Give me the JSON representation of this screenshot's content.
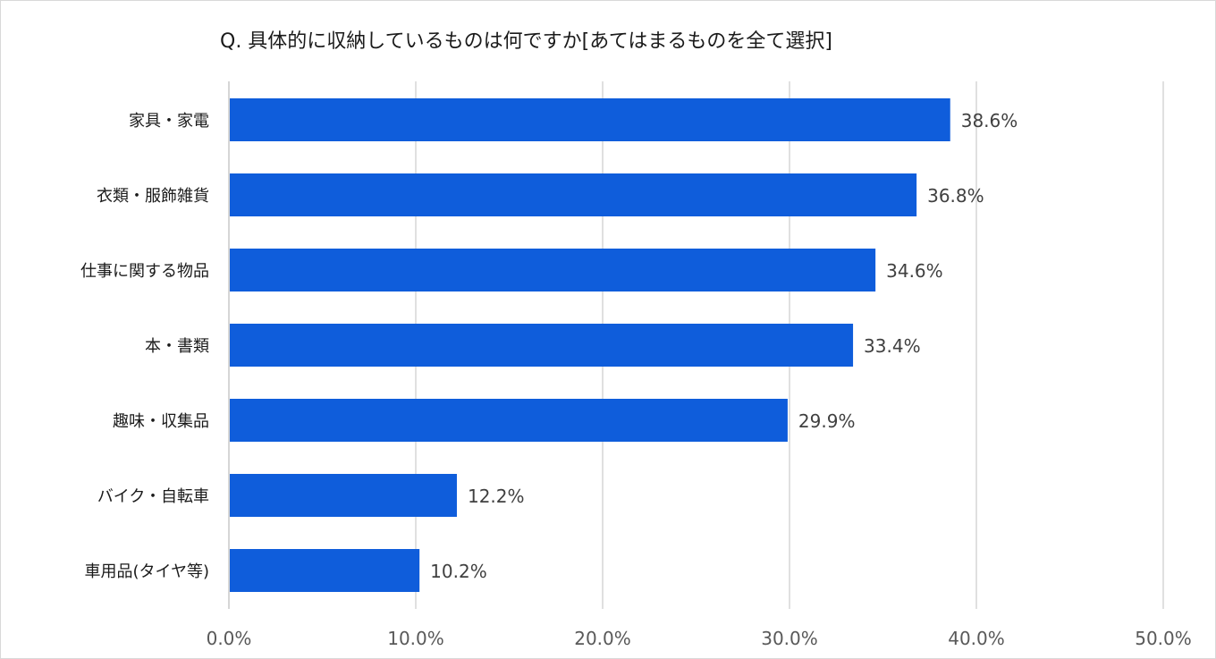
{
  "chart_data": {
    "type": "bar",
    "orientation": "horizontal",
    "title": "Q. 具体的に収納しているものは何ですか[あてはまるものを全て選択]",
    "categories": [
      "家具・家電",
      "衣類・服飾雑貨",
      "仕事に関する物品",
      "本・書類",
      "趣味・収集品",
      "バイク・自転車",
      "車用品(タイヤ等)"
    ],
    "values": [
      38.6,
      36.8,
      34.6,
      33.4,
      29.9,
      12.2,
      10.2
    ],
    "value_labels": [
      "38.6%",
      "36.8%",
      "34.6%",
      "33.4%",
      "29.9%",
      "12.2%",
      "10.2%"
    ],
    "xlim": [
      0,
      50
    ],
    "xticks": [
      0,
      10,
      20,
      30,
      40,
      50
    ],
    "xtick_labels": [
      "0.0%",
      "10.0%",
      "20.0%",
      "30.0%",
      "40.0%",
      "50.0%"
    ],
    "xlabel": "",
    "ylabel": "",
    "grid": "vertical",
    "legend": "none",
    "bar_color": "#0f5ddb"
  }
}
